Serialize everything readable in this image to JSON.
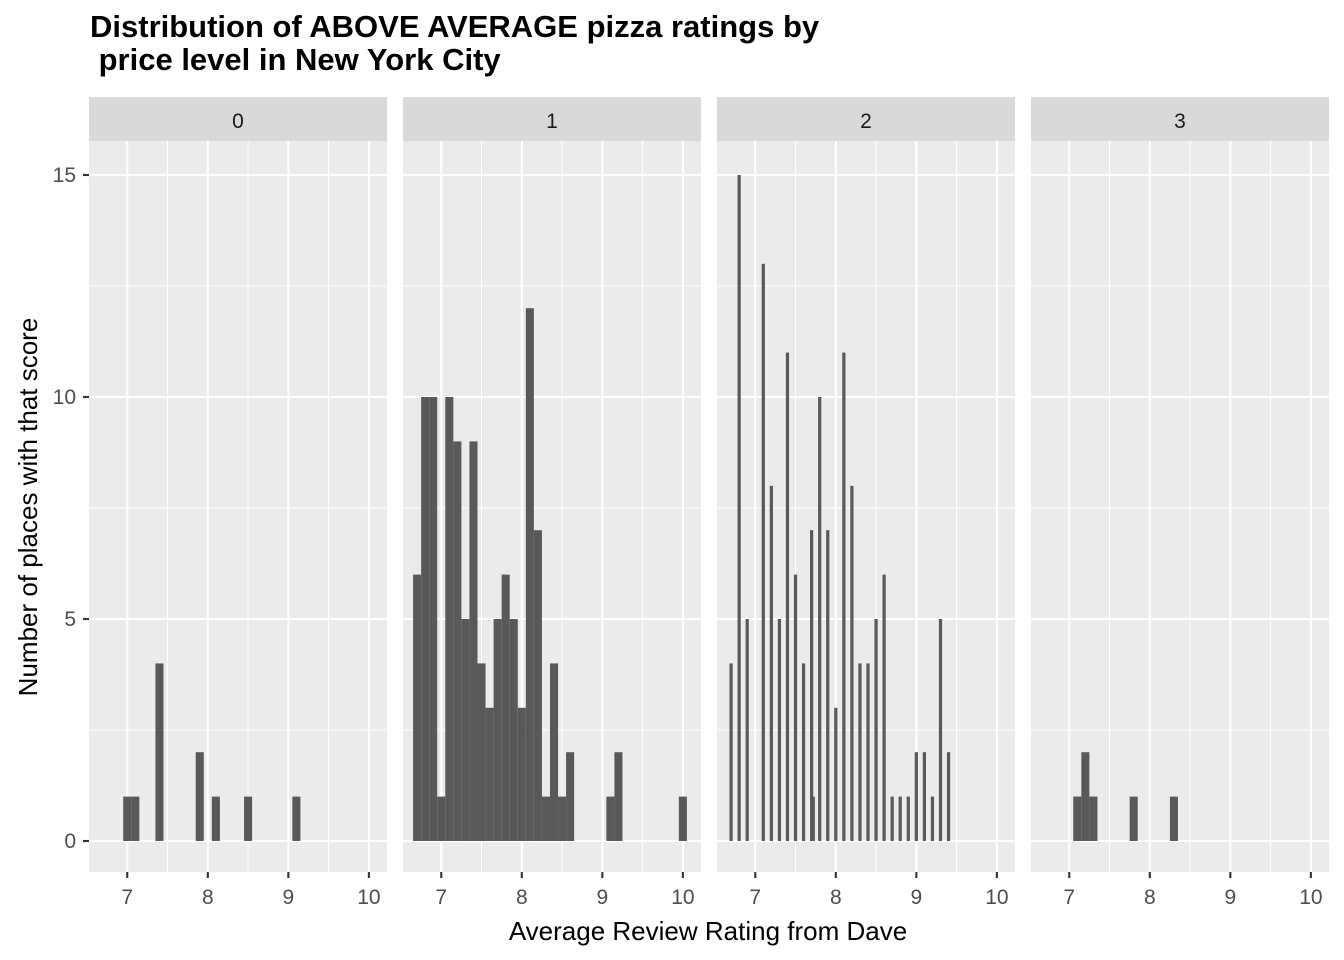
{
  "chart_data": {
    "type": "bar",
    "title": "Distribution of ABOVE AVERAGE pizza ratings by\n price level in New York City",
    "xlabel": "Average Review Rating from Dave",
    "ylabel": "Number of places with that score",
    "xlim": [
      6.5,
      10.25
    ],
    "ylim": [
      -0.7,
      15.0
    ],
    "x_ticks": [
      7,
      8,
      9,
      10
    ],
    "y_ticks": [
      0,
      5,
      10,
      15
    ],
    "grid": true,
    "facet_by": "price level",
    "facets": [
      {
        "label": "0",
        "bar_width": 0.1,
        "bars": [
          {
            "x": 7.0,
            "count": 1
          },
          {
            "x": 7.1,
            "count": 1
          },
          {
            "x": 7.4,
            "count": 4
          },
          {
            "x": 7.9,
            "count": 2
          },
          {
            "x": 8.1,
            "count": 1
          },
          {
            "x": 8.5,
            "count": 1
          },
          {
            "x": 9.1,
            "count": 1
          }
        ]
      },
      {
        "label": "1",
        "bar_width": 0.1,
        "bars": [
          {
            "x": 6.7,
            "count": 6
          },
          {
            "x": 6.8,
            "count": 10
          },
          {
            "x": 6.9,
            "count": 10
          },
          {
            "x": 7.0,
            "count": 1
          },
          {
            "x": 7.1,
            "count": 10
          },
          {
            "x": 7.2,
            "count": 9
          },
          {
            "x": 7.3,
            "count": 5
          },
          {
            "x": 7.4,
            "count": 9
          },
          {
            "x": 7.5,
            "count": 4
          },
          {
            "x": 7.6,
            "count": 3
          },
          {
            "x": 7.7,
            "count": 5
          },
          {
            "x": 7.8,
            "count": 6
          },
          {
            "x": 7.9,
            "count": 5
          },
          {
            "x": 8.0,
            "count": 3
          },
          {
            "x": 8.1,
            "count": 12
          },
          {
            "x": 8.2,
            "count": 7
          },
          {
            "x": 8.3,
            "count": 1
          },
          {
            "x": 8.4,
            "count": 4
          },
          {
            "x": 8.5,
            "count": 1
          },
          {
            "x": 8.6,
            "count": 2
          },
          {
            "x": 9.1,
            "count": 1
          },
          {
            "x": 9.2,
            "count": 2
          },
          {
            "x": 10.0,
            "count": 1
          }
        ]
      },
      {
        "label": "2",
        "bar_width": 0.04,
        "bars": [
          {
            "x": 6.7,
            "count": 4
          },
          {
            "x": 6.8,
            "count": 15
          },
          {
            "x": 6.9,
            "count": 5
          },
          {
            "x": 7.1,
            "count": 13
          },
          {
            "x": 7.2,
            "count": 8
          },
          {
            "x": 7.3,
            "count": 5
          },
          {
            "x": 7.4,
            "count": 11
          },
          {
            "x": 7.5,
            "count": 6
          },
          {
            "x": 7.6,
            "count": 4
          },
          {
            "x": 7.7,
            "count": 7
          },
          {
            "x": 7.72,
            "count": 1
          },
          {
            "x": 7.8,
            "count": 10
          },
          {
            "x": 7.9,
            "count": 7
          },
          {
            "x": 8.0,
            "count": 3
          },
          {
            "x": 8.1,
            "count": 11
          },
          {
            "x": 8.2,
            "count": 8
          },
          {
            "x": 8.3,
            "count": 4
          },
          {
            "x": 8.4,
            "count": 4
          },
          {
            "x": 8.5,
            "count": 5
          },
          {
            "x": 8.6,
            "count": 6
          },
          {
            "x": 8.7,
            "count": 1
          },
          {
            "x": 8.8,
            "count": 1
          },
          {
            "x": 8.9,
            "count": 1
          },
          {
            "x": 9.0,
            "count": 2
          },
          {
            "x": 9.1,
            "count": 2
          },
          {
            "x": 9.2,
            "count": 1
          },
          {
            "x": 9.3,
            "count": 5
          },
          {
            "x": 9.4,
            "count": 2
          }
        ]
      },
      {
        "label": "3",
        "bar_width": 0.1,
        "bars": [
          {
            "x": 7.1,
            "count": 1
          },
          {
            "x": 7.2,
            "count": 2
          },
          {
            "x": 7.3,
            "count": 1
          },
          {
            "x": 7.8,
            "count": 1
          },
          {
            "x": 8.3,
            "count": 1
          }
        ]
      }
    ],
    "colors": {
      "bar": "#595959",
      "panel_background": "#ebebeb",
      "strip_background": "#d9d9d9",
      "grid": "#ffffff"
    }
  }
}
